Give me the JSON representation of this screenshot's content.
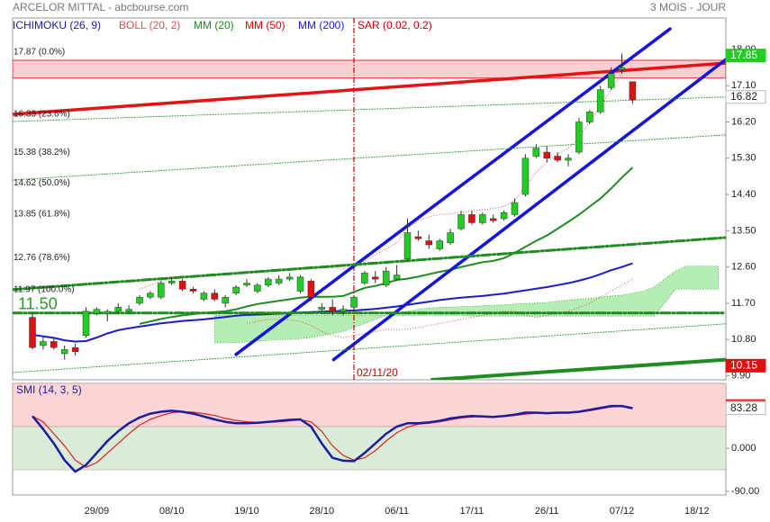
{
  "chart_data": {
    "type": "candlestick",
    "title": "ARCELOR MITTAL - abcbourse.com",
    "period": "3 MOIS - JOUR",
    "categories": [
      null,
      null,
      null,
      null,
      null,
      null,
      "29/09",
      null,
      null,
      null,
      null,
      null,
      null,
      "08/10",
      null,
      null,
      null,
      null,
      null,
      null,
      "19/10",
      null,
      null,
      null,
      null,
      null,
      null,
      "28/10",
      null,
      null,
      null,
      null,
      null,
      null,
      "06/11",
      null,
      null,
      null,
      null,
      null,
      null,
      "17/11",
      null,
      null,
      null,
      null,
      null,
      null,
      "26/11",
      null,
      null,
      null,
      null,
      null,
      null,
      "07/12",
      null,
      null,
      null,
      null,
      null,
      null,
      "18/12",
      null,
      null
    ],
    "open": [
      11.35,
      10.65,
      10.75,
      10.45,
      10.6,
      10.9,
      11.45,
      11.45,
      11.5,
      11.5,
      11.7,
      11.85,
      11.85,
      12.2,
      12.25,
      12.05,
      11.8,
      11.95,
      11.7,
      11.95,
      12.15,
      12.0,
      12.15,
      12.2,
      12.3,
      12.0,
      12.25,
      11.55,
      11.6,
      11.5,
      11.6,
      12.2,
      12.35,
      12.15,
      12.3,
      12.8,
      13.35,
      13.25,
      13.05,
      13.2,
      13.55,
      13.9,
      13.7,
      13.8,
      13.8,
      13.9,
      14.4,
      15.35,
      15.45,
      15.35,
      15.25,
      15.45,
      16.2,
      16.45,
      17.05,
      17.5,
      17.2,
      null,
      null,
      null,
      null,
      null,
      null,
      null,
      null
    ],
    "high": [
      11.45,
      10.85,
      10.85,
      10.65,
      10.7,
      11.6,
      11.6,
      11.55,
      11.7,
      11.65,
      11.9,
      12.0,
      12.25,
      12.35,
      12.3,
      12.1,
      12.0,
      12.05,
      11.9,
      12.15,
      12.3,
      12.2,
      12.35,
      12.4,
      12.45,
      12.4,
      12.3,
      11.7,
      11.8,
      11.65,
      11.9,
      12.5,
      12.5,
      12.6,
      12.65,
      13.8,
      13.5,
      13.4,
      13.3,
      13.55,
      14.0,
      14.0,
      13.95,
      13.9,
      14.0,
      14.3,
      15.4,
      15.65,
      15.6,
      15.45,
      15.4,
      16.3,
      16.5,
      17.1,
      17.55,
      17.9,
      17.2,
      null,
      null,
      null,
      null,
      null,
      null,
      null,
      null
    ],
    "low": [
      10.55,
      10.55,
      10.55,
      10.3,
      10.4,
      10.85,
      11.4,
      11.25,
      11.45,
      11.45,
      11.65,
      11.8,
      11.8,
      12.15,
      12.0,
      11.95,
      11.75,
      11.75,
      11.6,
      11.9,
      12.1,
      11.95,
      12.1,
      12.15,
      12.25,
      11.95,
      11.75,
      11.5,
      11.4,
      11.4,
      11.55,
      12.15,
      12.2,
      12.1,
      12.25,
      12.75,
      13.25,
      13.05,
      13.0,
      13.15,
      13.5,
      13.65,
      13.65,
      13.7,
      13.75,
      13.85,
      14.35,
      15.3,
      15.2,
      15.2,
      15.1,
      15.4,
      16.15,
      16.4,
      17.0,
      17.4,
      16.65,
      null,
      null,
      null,
      null,
      null,
      null,
      null,
      null
    ],
    "close": [
      10.6,
      10.75,
      10.6,
      10.55,
      10.5,
      11.5,
      11.55,
      11.5,
      11.6,
      11.55,
      11.85,
      11.95,
      12.2,
      12.25,
      12.05,
      12.0,
      11.95,
      11.8,
      11.85,
      12.1,
      12.2,
      12.15,
      12.3,
      12.3,
      12.35,
      12.35,
      11.85,
      11.6,
      11.5,
      11.55,
      11.85,
      12.45,
      12.3,
      12.5,
      12.4,
      13.45,
      13.3,
      13.15,
      13.25,
      13.45,
      13.9,
      13.7,
      13.9,
      13.75,
      13.95,
      14.2,
      15.3,
      15.55,
      15.3,
      15.25,
      15.3,
      16.2,
      16.45,
      17.0,
      17.4,
      17.55,
      16.75,
      null,
      null,
      null,
      null,
      null,
      null,
      null,
      null
    ],
    "up_color": "#22cc22",
    "down_color": "#dd1111",
    "ylim": [
      9.8,
      18.78
    ],
    "yticks": [
      {
        "value": 18,
        "label": "18.00"
      },
      {
        "value": 17.1,
        "label": "17.10"
      },
      {
        "value": 16.2,
        "label": "16.20"
      },
      {
        "value": 15.3,
        "label": "15.30"
      },
      {
        "value": 14.4,
        "label": "14.40"
      },
      {
        "value": 13.5,
        "label": "13.50"
      },
      {
        "value": 12.6,
        "label": "12.60"
      },
      {
        "value": 11.7,
        "label": "11.70"
      },
      {
        "value": 10.8,
        "label": "10.80"
      },
      {
        "value": 9.9,
        "label": "9.90"
      }
    ],
    "indicators": [
      {
        "name": "ICHIMOKU (26, 9)",
        "color": "#1a1a9c",
        "fill": "#9be89b",
        "lines": [
          [
            null,
            null,
            null,
            null,
            null,
            null,
            null,
            null,
            null,
            null,
            null,
            null,
            null,
            null,
            null,
            null,
            null,
            10.72,
            10.72,
            10.72,
            10.74,
            10.76,
            10.78,
            10.8,
            10.8,
            10.82,
            10.85,
            10.9,
            10.95,
            11.0,
            11.1,
            11.2,
            11.3,
            11.4,
            11.45,
            11.5,
            11.55,
            11.58,
            11.6,
            11.6,
            11.62,
            11.62,
            11.64,
            11.65,
            11.66,
            11.68,
            11.7,
            11.7,
            11.72,
            11.75,
            11.78,
            11.8,
            11.82,
            11.85,
            11.88,
            11.9,
            11.95,
            12.0,
            12.1,
            12.3,
            12.5,
            12.62,
            12.62,
            12.62,
            12.62
          ],
          [
            null,
            null,
            null,
            null,
            null,
            null,
            null,
            null,
            null,
            null,
            null,
            null,
            null,
            null,
            null,
            null,
            null,
            11.4,
            11.4,
            11.4,
            11.4,
            11.4,
            11.4,
            11.4,
            11.4,
            11.4,
            11.4,
            11.4,
            11.4,
            11.4,
            11.4,
            11.4,
            11.4,
            11.4,
            11.4,
            11.4,
            11.4,
            11.4,
            11.4,
            11.4,
            11.4,
            11.38,
            11.38,
            11.38,
            11.38,
            11.38,
            11.38,
            11.38,
            11.38,
            11.38,
            11.38,
            11.38,
            11.38,
            11.38,
            11.38,
            11.38,
            11.38,
            11.38,
            11.38,
            11.7,
            12.05,
            12.05,
            12.05,
            12.05,
            12.05
          ]
        ]
      },
      {
        "name": "BOLL (20, 2)",
        "color": "#e05050",
        "lines": [
          [
            null,
            null,
            null,
            null,
            null,
            null,
            null,
            null,
            null,
            null,
            12.05,
            12.15,
            12.25,
            12.32,
            12.36,
            12.38,
            12.4,
            12.42,
            12.44,
            12.46,
            12.48,
            12.5,
            12.52,
            12.54,
            12.56,
            12.58,
            12.6,
            12.6,
            12.58,
            12.56,
            12.6,
            12.75,
            12.9,
            13.05,
            13.2,
            13.55,
            13.75,
            13.85,
            13.9,
            13.92,
            13.95,
            14.0,
            14.02,
            14.05,
            14.1,
            14.25,
            14.6,
            14.95,
            15.2,
            15.4,
            15.55,
            15.8,
            16.2,
            16.6,
            17.0,
            17.4,
            17.6,
            null,
            null,
            null,
            null,
            null,
            null,
            null,
            null
          ],
          [
            null,
            null,
            null,
            null,
            null,
            null,
            null,
            null,
            null,
            null,
            null,
            null,
            null,
            null,
            null,
            null,
            null,
            null,
            null,
            null,
            11.2,
            11.25,
            11.3,
            11.3,
            11.28,
            11.25,
            11.15,
            11.0,
            10.9,
            10.85,
            10.9,
            10.95,
            11.0,
            11.05,
            11.05,
            11.05,
            11.1,
            11.15,
            11.2,
            11.25,
            11.3,
            11.35,
            11.4,
            11.45,
            11.5,
            11.5,
            11.4,
            11.35,
            11.4,
            11.45,
            11.5,
            11.6,
            11.7,
            11.85,
            12.0,
            12.15,
            12.3,
            null,
            null,
            null,
            null,
            null,
            null,
            null,
            null
          ]
        ]
      },
      {
        "name": "MM (20)",
        "color": "#1f8c1f",
        "lines": [
          [
            null,
            null,
            null,
            null,
            null,
            null,
            null,
            null,
            null,
            null,
            11.19,
            11.25,
            11.31,
            11.36,
            11.4,
            11.43,
            11.46,
            11.48,
            11.5,
            11.55,
            11.62,
            11.68,
            11.72,
            11.76,
            11.8,
            11.84,
            11.86,
            11.86,
            11.86,
            11.88,
            11.98,
            12.08,
            12.13,
            12.2,
            12.28,
            12.31,
            12.36,
            12.42,
            12.48,
            12.53,
            12.6,
            12.66,
            12.72,
            12.75,
            12.82,
            12.95,
            13.1,
            13.25,
            13.38,
            13.55,
            13.72,
            13.9,
            14.1,
            14.3,
            14.55,
            14.82,
            15.07,
            null,
            null,
            null,
            null,
            null,
            null,
            null,
            null
          ]
        ]
      },
      {
        "name": "MM (50)",
        "color": "#dd0000",
        "lines": []
      },
      {
        "name": "MM (200)",
        "color": "#1c1ccc",
        "lines": [
          [
            10.92,
            10.88,
            10.84,
            10.78,
            10.75,
            10.76,
            10.85,
            10.95,
            11.03,
            11.08,
            11.12,
            11.16,
            11.2,
            11.23,
            11.26,
            11.28,
            11.3,
            11.33,
            11.36,
            11.39,
            11.41,
            11.42,
            11.43,
            11.44,
            11.45,
            11.47,
            11.48,
            11.49,
            11.5,
            11.51,
            11.52,
            11.54,
            11.56,
            11.59,
            11.62,
            11.66,
            11.7,
            11.74,
            11.78,
            11.81,
            11.84,
            11.86,
            11.88,
            11.91,
            11.94,
            11.98,
            12.02,
            12.06,
            12.1,
            12.15,
            12.2,
            12.26,
            12.33,
            12.42,
            12.52,
            12.6,
            12.69,
            null,
            null,
            null,
            null,
            null,
            null,
            null,
            null
          ]
        ]
      },
      {
        "name": "SAR (0.02, 0.2)",
        "color": "#c00000",
        "date_index": 30,
        "date_label": "02/11/20"
      }
    ],
    "trendlines": [
      {
        "color": "#e31414",
        "width": 3.5,
        "points": [
          [
            -1.85,
            16.39
          ],
          [
            64.7,
            17.66
          ]
        ]
      },
      {
        "color": "#1414dd",
        "width": 3.5,
        "points": [
          [
            19.0,
            10.43
          ],
          [
            59.5,
            18.51
          ]
        ]
      },
      {
        "color": "#1414dd",
        "width": 3.5,
        "points": [
          [
            28.1,
            10.3
          ],
          [
            64.7,
            17.75
          ]
        ]
      },
      {
        "color": "#1f8c1f",
        "width": 3,
        "dash": "10 3 2 3",
        "points": [
          [
            -1.85,
            12.04
          ],
          [
            64.7,
            13.33
          ]
        ]
      },
      {
        "color": "#1f8c1f",
        "width": 3,
        "dash": "10 3 2 3",
        "points": [
          [
            -1.85,
            11.46
          ],
          [
            64.7,
            11.46
          ]
        ]
      },
      {
        "color": "#1f8c1f",
        "width": 4,
        "points": [
          [
            37.3,
            9.8
          ],
          [
            64.7,
            10.3
          ]
        ]
      },
      {
        "color": "#2a9a2a",
        "width": 1,
        "dash": "1 2",
        "points": [
          [
            -1.85,
            9.98
          ],
          [
            64.7,
            11.19
          ]
        ]
      },
      {
        "color": "#2a9a2a",
        "width": 1,
        "dash": "1 2",
        "points": [
          [
            -1.85,
            14.76
          ],
          [
            64.7,
            15.88
          ]
        ]
      },
      {
        "color": "#2a9a2a",
        "width": 1,
        "dash": "1 2",
        "points": [
          [
            -1.85,
            16.21
          ],
          [
            64.7,
            16.82
          ]
        ]
      }
    ],
    "zone": {
      "range": [
        17.29,
        17.73
      ],
      "color": "#fcd0d0",
      "border": "#dd3333"
    },
    "fib_levels": [
      {
        "value": 17.87,
        "label": "17.87  (0.0%)"
      },
      {
        "value": 16.33,
        "label": "16.33  (23.6%)"
      },
      {
        "value": 15.38,
        "label": "15.38  (38.2%)"
      },
      {
        "value": 14.62,
        "label": "14.62  (50.0%)"
      },
      {
        "value": 13.85,
        "label": "13.85  (61.8%)"
      },
      {
        "value": 12.76,
        "label": "12.76  (78.6%)"
      },
      {
        "value": 11.97,
        "label": "11.97  (100.0%)"
      }
    ],
    "last_price": {
      "value": 11.5,
      "label": "11.50",
      "color": "#2a9a2a"
    },
    "price_labels": [
      {
        "value": 17.85,
        "color": "#22cc22",
        "text_color": "#ffffff"
      },
      {
        "value": 16.82,
        "color": "#ffffff",
        "text_color": "#222222"
      },
      {
        "value": 10.15,
        "color": "#dd1111",
        "text_color": "#ffffff"
      }
    ],
    "smi": {
      "title": "SMI (14, 3, 5)",
      "ylim": [
        -97.5,
        135
      ],
      "yticks": [
        {
          "value": 0,
          "label": "0.000"
        },
        {
          "value": -90,
          "label": "-90.00"
        }
      ],
      "bands": [
        {
          "range": [
            45,
            135
          ],
          "color": "#fcd6d6"
        },
        {
          "range": [
            -45,
            45
          ],
          "color": "#d8ecd8"
        }
      ],
      "series": [
        {
          "color": "#1c1c9c",
          "width": 2.5,
          "values": [
            67,
            40,
            10,
            -25,
            -49,
            -35,
            -10,
            15,
            35,
            52,
            64,
            72,
            76,
            78,
            76,
            72,
            66,
            60,
            55,
            52,
            52,
            53,
            55,
            57,
            59,
            60,
            45,
            10,
            -20,
            -26,
            -27,
            -10,
            10,
            30,
            45,
            52,
            52,
            54,
            57,
            62,
            65,
            67,
            66,
            65,
            67,
            70,
            74,
            74,
            73,
            74,
            74,
            76,
            80,
            84,
            88,
            88,
            83.28,
            null,
            null,
            null,
            null,
            null,
            null,
            null,
            null
          ]
        },
        {
          "color": "#dd2222",
          "width": 1.2,
          "values": [
            67,
            55,
            30,
            5,
            -25,
            -40,
            -30,
            -10,
            10,
            30,
            48,
            60,
            68,
            74,
            76,
            75,
            72,
            68,
            62,
            58,
            55,
            54,
            54,
            55,
            57,
            59,
            55,
            35,
            5,
            -15,
            -25,
            -20,
            -5,
            15,
            32,
            44,
            50,
            52,
            55,
            59,
            63,
            65,
            66,
            66,
            66,
            68,
            71,
            73,
            73,
            73,
            74,
            75,
            78,
            82,
            86,
            87,
            85,
            null,
            null,
            null,
            null,
            null,
            null,
            null,
            null
          ]
        }
      ]
    }
  }
}
